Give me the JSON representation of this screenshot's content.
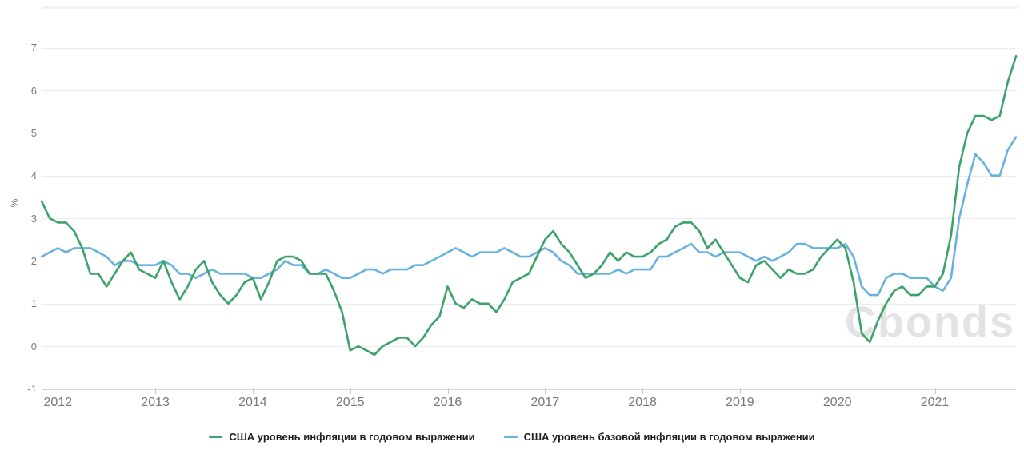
{
  "chart": {
    "y_axis_title": "%",
    "watermark": "Cbonds",
    "colors": {
      "inflation_line": "#3BA368",
      "core_inflation_line": "#68B2DF",
      "gridline": "#ececec",
      "axis_baseline": "#d6d6d6",
      "tick_text": "#7b7b7b",
      "legend_text": "#1e1e1e",
      "watermark_text": "#e3e3e3"
    }
  },
  "chart_data": {
    "type": "line",
    "ylabel": "%",
    "ylim": [
      -1,
      7
    ],
    "yticks": [
      -1,
      0,
      1,
      2,
      3,
      4,
      5,
      6,
      7
    ],
    "xticks": [
      2012,
      2013,
      2014,
      2015,
      2016,
      2017,
      2018,
      2019,
      2020,
      2021
    ],
    "grid": true,
    "legend_position": "bottom",
    "x": [
      "2011-11",
      "2011-12",
      "2012-01",
      "2012-02",
      "2012-03",
      "2012-04",
      "2012-05",
      "2012-06",
      "2012-07",
      "2012-08",
      "2012-09",
      "2012-10",
      "2012-11",
      "2012-12",
      "2013-01",
      "2013-02",
      "2013-03",
      "2013-04",
      "2013-05",
      "2013-06",
      "2013-07",
      "2013-08",
      "2013-09",
      "2013-10",
      "2013-11",
      "2013-12",
      "2014-01",
      "2014-02",
      "2014-03",
      "2014-04",
      "2014-05",
      "2014-06",
      "2014-07",
      "2014-08",
      "2014-09",
      "2014-10",
      "2014-11",
      "2014-12",
      "2015-01",
      "2015-02",
      "2015-03",
      "2015-04",
      "2015-05",
      "2015-06",
      "2015-07",
      "2015-08",
      "2015-09",
      "2015-10",
      "2015-11",
      "2015-12",
      "2016-01",
      "2016-02",
      "2016-03",
      "2016-04",
      "2016-05",
      "2016-06",
      "2016-07",
      "2016-08",
      "2016-09",
      "2016-10",
      "2016-11",
      "2016-12",
      "2017-01",
      "2017-02",
      "2017-03",
      "2017-04",
      "2017-05",
      "2017-06",
      "2017-07",
      "2017-08",
      "2017-09",
      "2017-10",
      "2017-11",
      "2017-12",
      "2018-01",
      "2018-02",
      "2018-03",
      "2018-04",
      "2018-05",
      "2018-06",
      "2018-07",
      "2018-08",
      "2018-09",
      "2018-10",
      "2018-11",
      "2018-12",
      "2019-01",
      "2019-02",
      "2019-03",
      "2019-04",
      "2019-05",
      "2019-06",
      "2019-07",
      "2019-08",
      "2019-09",
      "2019-10",
      "2019-11",
      "2019-12",
      "2020-01",
      "2020-02",
      "2020-03",
      "2020-04",
      "2020-05",
      "2020-06",
      "2020-07",
      "2020-08",
      "2020-09",
      "2020-10",
      "2020-11",
      "2020-12",
      "2021-01",
      "2021-02",
      "2021-03",
      "2021-04",
      "2021-05",
      "2021-06",
      "2021-07",
      "2021-08",
      "2021-09",
      "2021-10",
      "2021-11"
    ],
    "series": [
      {
        "name": "США уровень инфляции в годовом выражении",
        "color": "#3BA368",
        "values": [
          3.4,
          3.0,
          2.9,
          2.9,
          2.7,
          2.3,
          1.7,
          1.7,
          1.4,
          1.7,
          2.0,
          2.2,
          1.8,
          1.7,
          1.6,
          2.0,
          1.5,
          1.1,
          1.4,
          1.8,
          2.0,
          1.5,
          1.2,
          1.0,
          1.2,
          1.5,
          1.6,
          1.1,
          1.5,
          2.0,
          2.1,
          2.1,
          2.0,
          1.7,
          1.7,
          1.7,
          1.3,
          0.8,
          -0.1,
          0.0,
          -0.1,
          -0.2,
          0.0,
          0.1,
          0.2,
          0.2,
          0.0,
          0.2,
          0.5,
          0.7,
          1.4,
          1.0,
          0.9,
          1.1,
          1.0,
          1.0,
          0.8,
          1.1,
          1.5,
          1.6,
          1.7,
          2.1,
          2.5,
          2.7,
          2.4,
          2.2,
          1.9,
          1.6,
          1.7,
          1.9,
          2.2,
          2.0,
          2.2,
          2.1,
          2.1,
          2.2,
          2.4,
          2.5,
          2.8,
          2.9,
          2.9,
          2.7,
          2.3,
          2.5,
          2.2,
          1.9,
          1.6,
          1.5,
          1.9,
          2.0,
          1.8,
          1.6,
          1.8,
          1.7,
          1.7,
          1.8,
          2.1,
          2.3,
          2.5,
          2.3,
          1.5,
          0.3,
          0.1,
          0.6,
          1.0,
          1.3,
          1.4,
          1.2,
          1.2,
          1.4,
          1.4,
          1.7,
          2.6,
          4.2,
          5.0,
          5.4,
          5.4,
          5.3,
          5.4,
          6.2,
          6.8
        ]
      },
      {
        "name": "США уровень базовой инфляции в годовом выражении",
        "color": "#68B2DF",
        "values": [
          2.1,
          2.2,
          2.3,
          2.2,
          2.3,
          2.3,
          2.3,
          2.2,
          2.1,
          1.9,
          2.0,
          2.0,
          1.9,
          1.9,
          1.9,
          2.0,
          1.9,
          1.7,
          1.7,
          1.6,
          1.7,
          1.8,
          1.7,
          1.7,
          1.7,
          1.7,
          1.6,
          1.6,
          1.7,
          1.8,
          2.0,
          1.9,
          1.9,
          1.7,
          1.7,
          1.8,
          1.7,
          1.6,
          1.6,
          1.7,
          1.8,
          1.8,
          1.7,
          1.8,
          1.8,
          1.8,
          1.9,
          1.9,
          2.0,
          2.1,
          2.2,
          2.3,
          2.2,
          2.1,
          2.2,
          2.2,
          2.2,
          2.3,
          2.2,
          2.1,
          2.1,
          2.2,
          2.3,
          2.2,
          2.0,
          1.9,
          1.7,
          1.7,
          1.7,
          1.7,
          1.7,
          1.8,
          1.7,
          1.8,
          1.8,
          1.8,
          2.1,
          2.1,
          2.2,
          2.3,
          2.4,
          2.2,
          2.2,
          2.1,
          2.2,
          2.2,
          2.2,
          2.1,
          2.0,
          2.1,
          2.0,
          2.1,
          2.2,
          2.4,
          2.4,
          2.3,
          2.3,
          2.3,
          2.3,
          2.4,
          2.1,
          1.4,
          1.2,
          1.2,
          1.6,
          1.7,
          1.7,
          1.6,
          1.6,
          1.6,
          1.4,
          1.3,
          1.6,
          3.0,
          3.8,
          4.5,
          4.3,
          4.0,
          4.0,
          4.6,
          4.9
        ]
      }
    ]
  }
}
